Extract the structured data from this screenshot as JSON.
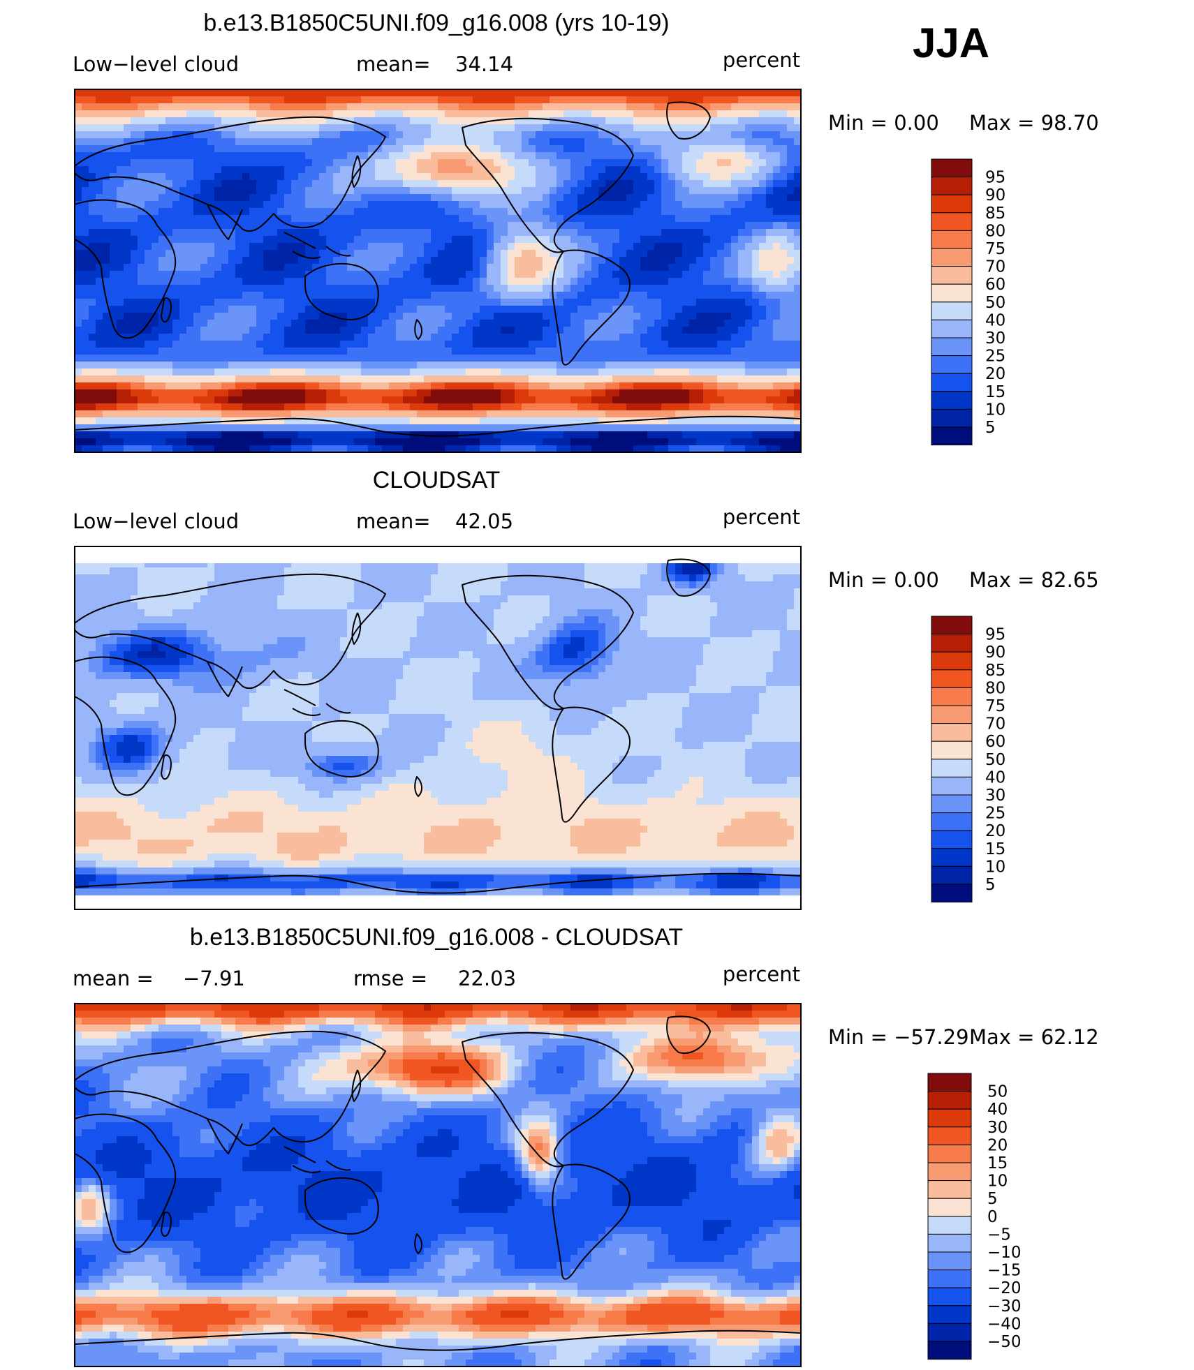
{
  "season": "JJA",
  "units_label": "percent",
  "colors": {
    "abs": [
      "#000d7d",
      "#0024a8",
      "#0037c9",
      "#1552ee",
      "#3d72f7",
      "#6b94f8",
      "#9ab6fa",
      "#c6daf9",
      "#fbe3d4",
      "#f9bd9d",
      "#f89a72",
      "#f77b4b",
      "#ef5622",
      "#dc3a0b",
      "#b61f06",
      "#800d0c"
    ],
    "diff": [
      "#000d7d",
      "#0024a8",
      "#0037c9",
      "#1552ee",
      "#3d72f7",
      "#6b94f8",
      "#9ab6fa",
      "#c6daf9",
      "#fbe3d4",
      "#f9bd9d",
      "#f89a72",
      "#f77b4b",
      "#ef5622",
      "#dc3a0b",
      "#b61f06",
      "#800d0c"
    ]
  },
  "panels": [
    {
      "title": "b.e13.B1850C5UNI.f09_g16.008 (yrs 10-19)",
      "left_label": "Low−level cloud",
      "stat_label": "mean=",
      "stat_value": "34.14",
      "min_text": "Min  =     0.00",
      "max_text": "Max  =   98.70",
      "cb_labels": [
        "95",
        "90",
        "85",
        "80",
        "75",
        "70",
        "60",
        "50",
        "40",
        "30",
        "25",
        "20",
        "15",
        "10",
        "5"
      ]
    },
    {
      "title": "CLOUDSAT",
      "left_label": "Low−level cloud",
      "stat_label": "mean=",
      "stat_value": "42.05",
      "min_text": "Min  =     0.00",
      "max_text": "Max  =   82.65",
      "cb_labels": [
        "95",
        "90",
        "85",
        "80",
        "75",
        "70",
        "60",
        "50",
        "40",
        "30",
        "25",
        "20",
        "15",
        "10",
        "5"
      ]
    },
    {
      "title": "b.e13.B1850C5UNI.f09_g16.008 - CLOUDSAT",
      "left_label": "mean  =",
      "left_value": "−7.91",
      "stat_label": "rmse  =",
      "stat_value": "22.03",
      "min_text": "Min  = −57.29",
      "max_text": "Max  =   62.12",
      "cb_labels": [
        "50",
        "40",
        "30",
        "20",
        "15",
        "10",
        "5",
        "0",
        "−5",
        "−10",
        "−15",
        "−20",
        "−30",
        "−40",
        "−50"
      ]
    }
  ],
  "chart_data": [
    {
      "type": "heatmap",
      "title": "b.e13.B1850C5UNI.f09_g16.008 (yrs 10-19)",
      "variable": "Low−level cloud",
      "units": "percent",
      "mean": 34.14,
      "min": 0.0,
      "max": 98.7,
      "levels": [
        5,
        10,
        15,
        20,
        25,
        30,
        40,
        50,
        60,
        70,
        75,
        80,
        85,
        90,
        95
      ]
    },
    {
      "type": "heatmap",
      "title": "CLOUDSAT",
      "variable": "Low−level cloud",
      "units": "percent",
      "mean": 42.05,
      "min": 0.0,
      "max": 82.65,
      "levels": [
        5,
        10,
        15,
        20,
        25,
        30,
        40,
        50,
        60,
        70,
        75,
        80,
        85,
        90,
        95
      ]
    },
    {
      "type": "heatmap",
      "title": "b.e13.B1850C5UNI.f09_g16.008 - CLOUDSAT",
      "units": "percent",
      "mean": -7.91,
      "rmse": 22.03,
      "min": -57.29,
      "max": 62.12,
      "levels": [
        -50,
        -40,
        -30,
        -20,
        -15,
        -10,
        -5,
        0,
        5,
        10,
        15,
        20,
        30,
        40,
        50
      ]
    }
  ]
}
